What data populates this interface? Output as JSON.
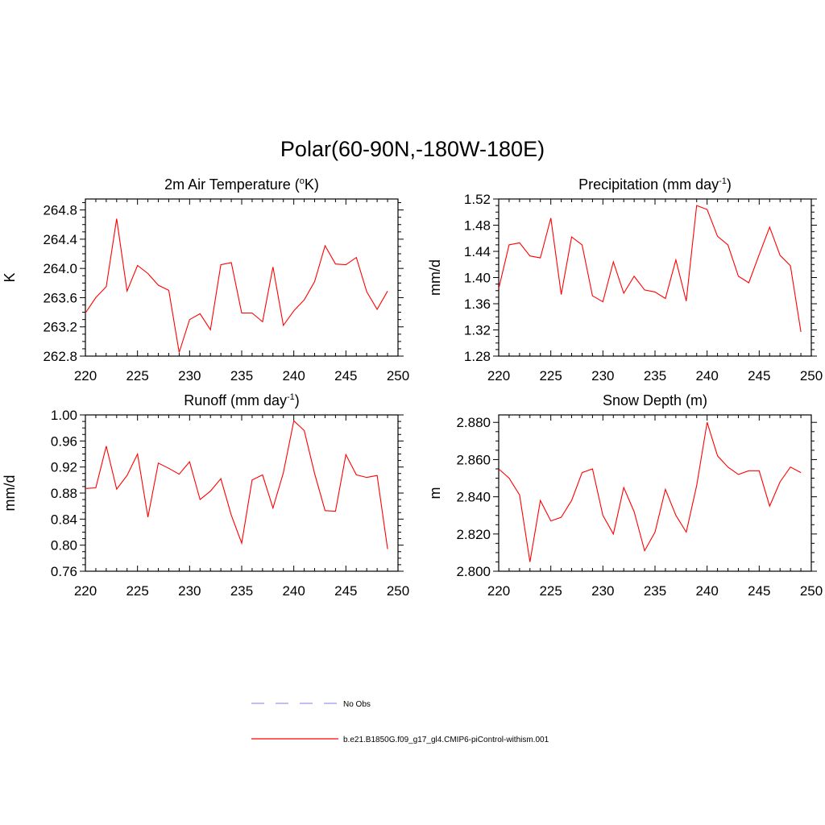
{
  "main_title": "Polar(60-90N,-180W-180E)",
  "legend": [
    {
      "label": "No Obs",
      "color": "#9999ee",
      "dashed": true
    },
    {
      "label": "b.e21.B1850G.f09_g17_gl4.CMIP6-piControl-withism.001",
      "color": "#ff0000",
      "dashed": false
    }
  ],
  "chart_data": [
    {
      "type": "line",
      "title": "2m Air Temperature (",
      "title_sup": "o",
      "title_after": "K)",
      "ylabel": "K",
      "xlim": [
        220,
        250
      ],
      "ylim": [
        262.8,
        264.95
      ],
      "xticks": [
        220,
        225,
        230,
        235,
        240,
        245,
        250
      ],
      "yticks": [
        "262.8",
        "263.2",
        "263.6",
        "264.0",
        "264.4",
        "264.8"
      ],
      "series": [
        {
          "color": "#ff0000",
          "x": [
            220,
            221,
            222,
            223,
            224,
            225,
            226,
            227,
            228,
            229,
            230,
            231,
            232,
            233,
            234,
            235,
            236,
            237,
            238,
            239,
            240,
            241,
            242,
            243,
            244,
            245,
            246,
            247,
            248,
            249
          ],
          "y": [
            263.39,
            263.6,
            263.75,
            264.68,
            263.69,
            264.04,
            263.93,
            263.77,
            263.7,
            262.85,
            263.3,
            263.38,
            263.16,
            264.05,
            264.08,
            263.39,
            263.39,
            263.27,
            264.02,
            263.22,
            263.42,
            263.57,
            263.82,
            264.31,
            264.06,
            264.05,
            264.15,
            263.68,
            263.44,
            263.69
          ]
        }
      ]
    },
    {
      "type": "line",
      "title": "Precipitation (mm day",
      "title_sup": "-1",
      "title_after": ")",
      "ylabel": "mm/d",
      "xlim": [
        220,
        250
      ],
      "ylim": [
        1.28,
        1.52
      ],
      "xticks": [
        220,
        225,
        230,
        235,
        240,
        245,
        250
      ],
      "yticks": [
        "1.28",
        "1.32",
        "1.36",
        "1.40",
        "1.44",
        "1.48",
        "1.52"
      ],
      "series": [
        {
          "color": "#ff0000",
          "x": [
            220,
            221,
            222,
            223,
            224,
            225,
            226,
            227,
            228,
            229,
            230,
            231,
            232,
            233,
            234,
            235,
            236,
            237,
            238,
            239,
            240,
            241,
            242,
            243,
            244,
            245,
            246,
            247,
            248,
            249
          ],
          "y": [
            1.383,
            1.45,
            1.453,
            1.433,
            1.43,
            1.491,
            1.374,
            1.462,
            1.45,
            1.372,
            1.363,
            1.424,
            1.376,
            1.402,
            1.381,
            1.378,
            1.368,
            1.427,
            1.364,
            1.51,
            1.504,
            1.463,
            1.45,
            1.402,
            1.392,
            1.435,
            1.477,
            1.434,
            1.418,
            1.317
          ]
        }
      ]
    },
    {
      "type": "line",
      "title": "Runoff (mm day",
      "title_sup": "-1",
      "title_after": ")",
      "ylabel": "mm/d",
      "xlim": [
        220,
        250
      ],
      "ylim": [
        0.76,
        1.0
      ],
      "xticks": [
        220,
        225,
        230,
        235,
        240,
        245,
        250
      ],
      "yticks": [
        "0.76",
        "0.80",
        "0.84",
        "0.88",
        "0.92",
        "0.96",
        "1.00"
      ],
      "series": [
        {
          "color": "#ff0000",
          "x": [
            220,
            221,
            222,
            223,
            224,
            225,
            226,
            227,
            228,
            229,
            230,
            231,
            232,
            233,
            234,
            235,
            236,
            237,
            238,
            239,
            240,
            241,
            242,
            243,
            244,
            245,
            246,
            247,
            248,
            249
          ],
          "y": [
            0.887,
            0.888,
            0.952,
            0.886,
            0.907,
            0.94,
            0.843,
            0.926,
            0.918,
            0.909,
            0.928,
            0.87,
            0.883,
            0.902,
            0.846,
            0.803,
            0.9,
            0.908,
            0.857,
            0.911,
            0.991,
            0.976,
            0.91,
            0.853,
            0.852,
            0.939,
            0.908,
            0.904,
            0.907,
            0.794
          ]
        }
      ]
    },
    {
      "type": "line",
      "title": "Snow Depth (m)",
      "title_sup": "",
      "title_after": "",
      "ylabel": "m",
      "xlim": [
        220,
        250
      ],
      "ylim": [
        2.8,
        2.884
      ],
      "xticks": [
        220,
        225,
        230,
        235,
        240,
        245,
        250
      ],
      "yticks": [
        "2.800",
        "2.820",
        "2.840",
        "2.860",
        "2.880"
      ],
      "series": [
        {
          "color": "#ff0000",
          "x": [
            220,
            221,
            222,
            223,
            224,
            225,
            226,
            227,
            228,
            229,
            230,
            231,
            232,
            233,
            234,
            235,
            236,
            237,
            238,
            239,
            240,
            241,
            242,
            243,
            244,
            245,
            246,
            247,
            248,
            249
          ],
          "y": [
            2.855,
            2.85,
            2.841,
            2.805,
            2.838,
            2.827,
            2.829,
            2.838,
            2.853,
            2.855,
            2.83,
            2.82,
            2.845,
            2.832,
            2.811,
            2.821,
            2.844,
            2.83,
            2.821,
            2.846,
            2.88,
            2.862,
            2.856,
            2.852,
            2.854,
            2.854,
            2.835,
            2.848,
            2.856,
            2.853
          ]
        }
      ]
    }
  ]
}
